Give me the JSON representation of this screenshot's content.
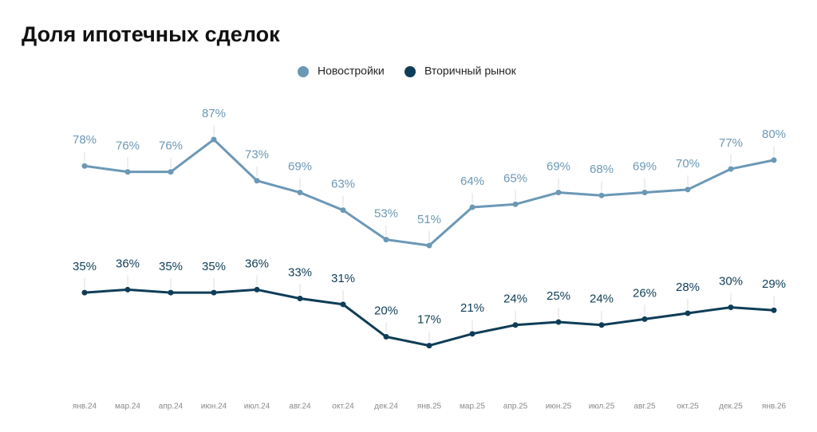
{
  "chart_data": {
    "type": "line",
    "title": "Доля ипотечных сделок",
    "categories": [
      "янв.24",
      "мар.24",
      "апр.24",
      "июн.24",
      "июл.24",
      "авг.24",
      "окт.24",
      "дек.24",
      "янв.25",
      "мар.25",
      "апр.25",
      "июн.25",
      "июл.25",
      "авг.25",
      "окт.25",
      "дек.25",
      "янв.26"
    ],
    "series": [
      {
        "name": "Новостройки",
        "color": "#6b98b6",
        "values": [
          78,
          76,
          76,
          87,
          73,
          69,
          63,
          53,
          51,
          64,
          65,
          69,
          68,
          69,
          70,
          77,
          80
        ],
        "value_labels": [
          "78%",
          "76%",
          "76%",
          "87%",
          "73%",
          "69%",
          "63%",
          "53%",
          "51%",
          "64%",
          "65%",
          "69%",
          "68%",
          "69%",
          "70%",
          "77%",
          "80%"
        ]
      },
      {
        "name": "Вторичный рынок",
        "color": "#0e3d57",
        "values": [
          35,
          36,
          35,
          35,
          36,
          33,
          31,
          20,
          17,
          21,
          24,
          25,
          24,
          26,
          28,
          30,
          29
        ],
        "value_labels": [
          "35%",
          "36%",
          "35%",
          "35%",
          "36%",
          "33%",
          "31%",
          "20%",
          "17%",
          "21%",
          "24%",
          "25%",
          "24%",
          "26%",
          "28%",
          "30%",
          "29%"
        ]
      }
    ]
  }
}
